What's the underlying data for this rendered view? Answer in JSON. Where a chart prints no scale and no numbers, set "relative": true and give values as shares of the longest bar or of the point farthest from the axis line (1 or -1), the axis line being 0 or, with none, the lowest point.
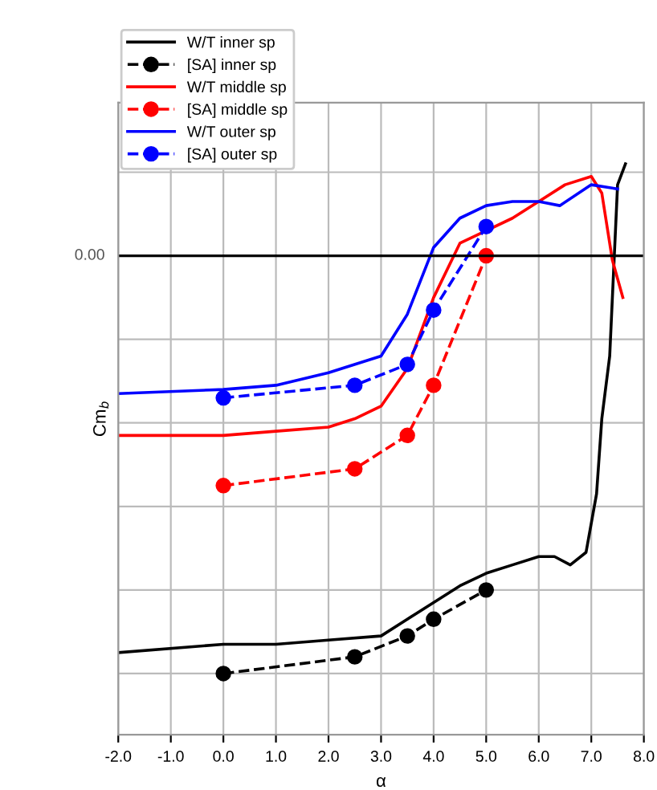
{
  "chart_data": {
    "type": "line",
    "relative": true,
    "xlabel": "α",
    "ylabel": "Cm$_{b}$",
    "xlim": [
      -2,
      8
    ],
    "xticks": [
      {
        "value": -2,
        "label": "-2.0"
      },
      {
        "value": -1,
        "label": "-1.0"
      },
      {
        "value": 0,
        "label": "0.0"
      },
      {
        "value": 1,
        "label": "1.0"
      },
      {
        "value": 2,
        "label": "2.0"
      },
      {
        "value": 3,
        "label": "3.0"
      },
      {
        "value": 4,
        "label": "4.0"
      },
      {
        "value": 5,
        "label": "5.0"
      },
      {
        "value": 6,
        "label": "6.0"
      },
      {
        "value": 7,
        "label": "7.0"
      },
      {
        "value": 8,
        "label": "8.0"
      }
    ],
    "grid": true,
    "legend": "top left",
    "ref_lines": [
      {
        "axis": "y",
        "value": 0,
        "label": "0.00",
        "color": "#000000"
      }
    ],
    "series": [
      {
        "name": "W/T inner sp",
        "color": "#000000",
        "line_style": "solid",
        "marker": "none",
        "x": [
          -2,
          0,
          1,
          2,
          3,
          3.5,
          4,
          4.5,
          5,
          5.5,
          6,
          6.3,
          6.6,
          6.9,
          7.1,
          7.2,
          7.35,
          7.5,
          7.65
        ],
        "values": [
          -0.95,
          -0.93,
          -0.93,
          -0.92,
          -0.91,
          -0.87,
          -0.83,
          -0.79,
          -0.76,
          -0.74,
          -0.72,
          -0.72,
          -0.74,
          -0.71,
          -0.57,
          -0.39,
          -0.24,
          0.17,
          0.22
        ]
      },
      {
        "name": "[SA] inner sp",
        "color": "#000000",
        "line_style": "dashed",
        "marker": "circle",
        "x": [
          0,
          2.5,
          3.5,
          4,
          5
        ],
        "values": [
          -1.0,
          -0.96,
          -0.91,
          -0.87,
          -0.8
        ]
      },
      {
        "name": "W/T middle sp",
        "color": "#ff0000",
        "line_style": "solid",
        "marker": "none",
        "x": [
          -2,
          0,
          1,
          2,
          2.5,
          3,
          3.5,
          4,
          4.5,
          5,
          5.5,
          6,
          6.5,
          7,
          7.2,
          7.4,
          7.6
        ],
        "values": [
          -0.43,
          -0.43,
          -0.42,
          -0.41,
          -0.39,
          -0.36,
          -0.27,
          -0.1,
          0.03,
          0.06,
          0.09,
          0.13,
          0.17,
          0.19,
          0.15,
          -0.01,
          -0.1
        ]
      },
      {
        "name": "[SA] middle sp",
        "color": "#ff0000",
        "line_style": "dashed",
        "marker": "circle",
        "x": [
          0,
          2.5,
          3.5,
          4,
          5
        ],
        "values": [
          -0.55,
          -0.51,
          -0.43,
          -0.31,
          0.0
        ]
      },
      {
        "name": "W/T outer sp",
        "color": "#0000ff",
        "line_style": "solid",
        "marker": "none",
        "x": [
          -2,
          0,
          1,
          2,
          3,
          3.5,
          4,
          4.5,
          5,
          5.5,
          6,
          6.4,
          7,
          7.5
        ],
        "values": [
          -0.33,
          -0.32,
          -0.31,
          -0.28,
          -0.24,
          -0.14,
          0.02,
          0.09,
          0.12,
          0.13,
          0.13,
          0.12,
          0.17,
          0.16
        ]
      },
      {
        "name": "[SA] outer sp",
        "color": "#0000ff",
        "line_style": "dashed",
        "marker": "circle",
        "x": [
          0,
          2.5,
          3.5,
          4,
          5
        ],
        "values": [
          -0.34,
          -0.31,
          -0.26,
          -0.13,
          0.07
        ]
      }
    ]
  }
}
